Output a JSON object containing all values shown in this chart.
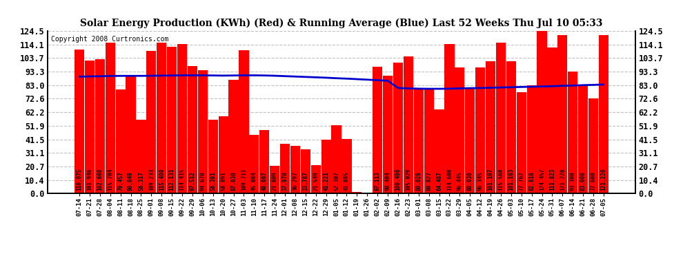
{
  "title": "Solar Energy Production (KWh) (Red) & Running Average (Blue) Last 52 Weeks Thu Jul 10 05:33",
  "copyright": "Copyright 2008 Curtronics.com",
  "bar_color": "#ff0000",
  "line_color": "#0000cc",
  "background_color": "#ffffff",
  "plot_bg_color": "#ffffff",
  "grid_color": "#c0c0c0",
  "ylim": [
    0,
    124.5
  ],
  "yticks": [
    0.0,
    10.4,
    20.7,
    31.1,
    41.5,
    51.9,
    62.2,
    72.6,
    83.0,
    93.3,
    103.7,
    114.1,
    124.5
  ],
  "dates": [
    "07-14",
    "07-21",
    "07-28",
    "08-04",
    "08-11",
    "08-18",
    "08-25",
    "09-01",
    "09-08",
    "09-15",
    "09-22",
    "09-29",
    "10-06",
    "10-13",
    "10-20",
    "10-27",
    "11-03",
    "11-10",
    "11-17",
    "11-24",
    "12-01",
    "12-08",
    "12-15",
    "12-22",
    "12-29",
    "01-05",
    "01-12",
    "01-19",
    "01-26",
    "02-02",
    "02-09",
    "02-16",
    "02-23",
    "03-01",
    "03-08",
    "03-15",
    "03-22",
    "03-29",
    "04-05",
    "04-12",
    "04-19",
    "04-26",
    "05-03",
    "05-10",
    "05-17",
    "05-24",
    "05-31",
    "06-07",
    "06-14",
    "06-21",
    "06-28",
    "07-05"
  ],
  "values": [
    110.075,
    101.946,
    102.66,
    115.704,
    79.457,
    90.049,
    56.317,
    109.233,
    115.4,
    112.131,
    114.415,
    97.512,
    94.67,
    56.391,
    58.891,
    87.03,
    109.711,
    45.084,
    48.667,
    21.009,
    37.97,
    36.297,
    33.787,
    21.549,
    41.221,
    52.307,
    41.885,
    1.413,
    0.0,
    97.113,
    90.404,
    100.496,
    105.029,
    80.029,
    80.827,
    64.487,
    114.6,
    96.445,
    80.03,
    96.345,
    101.107,
    115.568,
    101.183,
    77.762,
    82.818,
    124.457,
    111.823,
    121.22,
    93.3,
    83.0,
    72.6,
    121.22
  ],
  "running_avg": [
    89.5,
    89.7,
    89.8,
    90.0,
    90.1,
    90.1,
    90.1,
    90.2,
    90.3,
    90.4,
    90.5,
    90.5,
    90.5,
    90.4,
    90.3,
    90.4,
    90.5,
    90.5,
    90.4,
    90.2,
    89.9,
    89.6,
    89.3,
    89.0,
    88.7,
    88.3,
    88.0,
    87.6,
    87.2,
    86.8,
    86.3,
    80.8,
    80.5,
    80.3,
    80.2,
    80.2,
    80.3,
    80.5,
    80.7,
    80.8,
    81.0,
    81.2,
    81.4,
    81.6,
    81.8,
    82.0,
    82.2,
    82.5,
    82.7,
    83.0,
    83.2,
    83.5
  ]
}
